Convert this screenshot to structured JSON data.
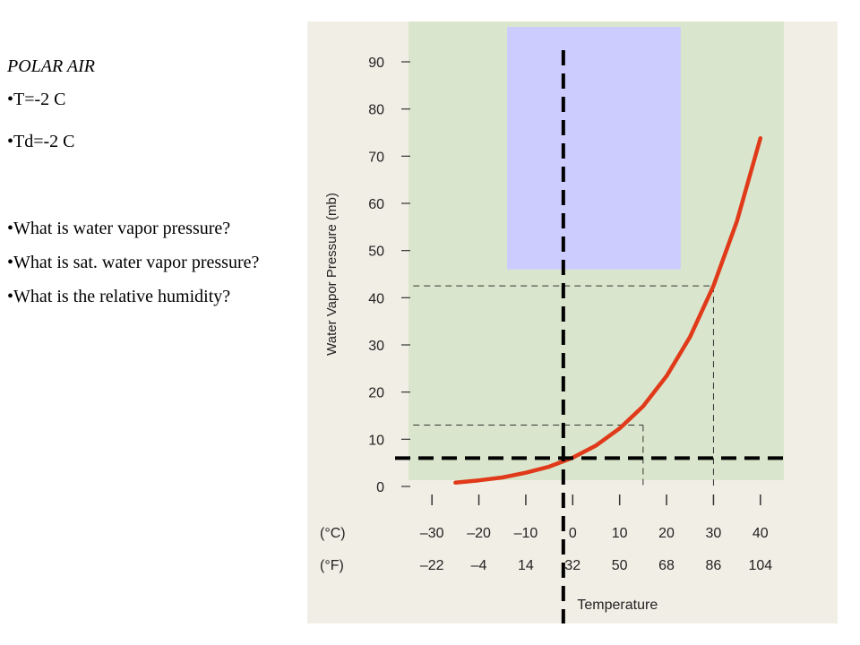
{
  "text_panel": {
    "heading": "POLAR AIR",
    "givens": [
      "T=-2 C",
      "Td=-2 C"
    ],
    "questions": [
      "What is water vapor pressure?",
      "What is sat. water vapor pressure?",
      "What is the relative humidity?"
    ]
  },
  "colors": {
    "plot_background": "#d9e6cd",
    "page_background": "#f1eee5",
    "curve": "#e03a1a",
    "overlay_box": "#ccccff",
    "guide_dashed": "#000000"
  },
  "chart_data": {
    "type": "line",
    "title": "",
    "xlabel": "Temperature",
    "ylabel": "Water Vapor Pressure (mb)",
    "xlim": [
      -35,
      45
    ],
    "ylim": [
      0,
      90
    ],
    "y_ticks": [
      0,
      10,
      20,
      30,
      40,
      50,
      60,
      70,
      80,
      90
    ],
    "x_ticks_c": [
      -30,
      -20,
      -10,
      0,
      10,
      20,
      30,
      40
    ],
    "x_ticks_f": [
      -22,
      -4,
      14,
      32,
      50,
      68,
      86,
      104
    ],
    "x_unit_c": "(°C)",
    "x_unit_f": "(°F)",
    "series": [
      {
        "x": [
          -25,
          -20,
          -15,
          -10,
          -5,
          0,
          5,
          10,
          15,
          20,
          25,
          30,
          35,
          40
        ],
        "y": [
          0.8,
          1.3,
          1.9,
          2.9,
          4.2,
          6.1,
          8.7,
          12.3,
          17.0,
          23.4,
          31.7,
          42.5,
          56.2,
          73.8
        ]
      }
    ],
    "reference_lines": [
      {
        "x": 30,
        "y": 42.5
      },
      {
        "x": 15,
        "y": 13.0
      }
    ],
    "highlight_lines": {
      "vertical_x": -2,
      "horizontal_y": 6
    },
    "overlay_box_region": {
      "x": [
        -14,
        23
      ],
      "y": [
        46,
        90
      ]
    }
  }
}
